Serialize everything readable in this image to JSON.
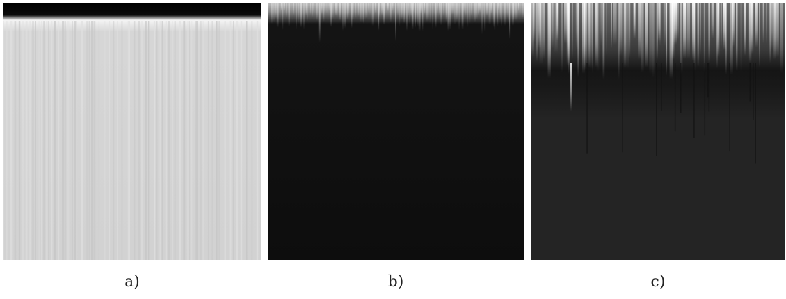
{
  "panels": [
    {
      "label": "a)"
    },
    {
      "label": "b)"
    },
    {
      "label": "c)"
    }
  ]
}
